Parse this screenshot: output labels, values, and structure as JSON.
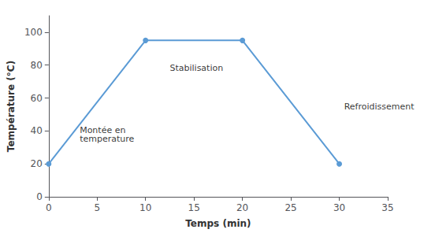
{
  "chart_data": {
    "type": "line",
    "x": [
      0,
      10,
      20,
      30
    ],
    "values": [
      20,
      95,
      95,
      20
    ],
    "color": "#5b9bd5",
    "marker": "circle",
    "xlabel": "Temps (min)",
    "ylabel": "Température (°C)",
    "xlim": [
      0,
      35
    ],
    "ylim": [
      0,
      110
    ],
    "xticks": [
      0,
      5,
      10,
      15,
      20,
      25,
      30,
      35
    ],
    "yticks": [
      0,
      20,
      40,
      60,
      80,
      100
    ],
    "grid": false,
    "annotations": [
      {
        "text": "Montée en\ntemperature",
        "x": 3.2,
        "y": 38
      },
      {
        "text": "Stabilisation",
        "x": 12.5,
        "y": 78
      },
      {
        "text": "Refroidissement",
        "x": 30.5,
        "y": 55
      }
    ]
  }
}
